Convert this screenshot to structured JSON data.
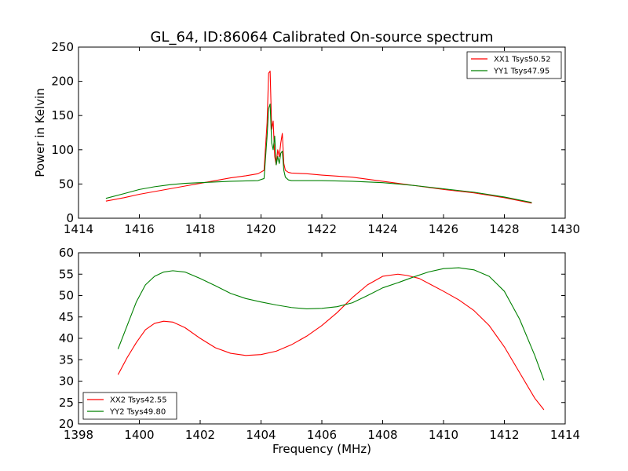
{
  "chart_data": [
    {
      "type": "line",
      "title": "GL_64, ID:86064 Calibrated On-source spectrum",
      "xlabel": "",
      "ylabel": "Power in Kelvin",
      "xlim": [
        1414,
        1430
      ],
      "ylim": [
        0,
        250
      ],
      "xticks": [
        1414,
        1416,
        1418,
        1420,
        1422,
        1424,
        1426,
        1428,
        1430
      ],
      "yticks": [
        0,
        50,
        100,
        150,
        200,
        250
      ],
      "grid": false,
      "legend_position": "top-right",
      "series": [
        {
          "name": "XX1 Tsys50.52",
          "color": "#ff0000",
          "x": [
            1414.9,
            1415.5,
            1416.0,
            1416.5,
            1417.0,
            1417.5,
            1418.0,
            1418.5,
            1419.0,
            1419.5,
            1419.9,
            1420.1,
            1420.2,
            1420.25,
            1420.3,
            1420.35,
            1420.4,
            1420.45,
            1420.5,
            1420.55,
            1420.6,
            1420.65,
            1420.7,
            1420.75,
            1420.8,
            1420.9,
            1421.0,
            1421.5,
            1422.0,
            1423.0,
            1424.0,
            1425.0,
            1426.0,
            1427.0,
            1428.0,
            1428.9
          ],
          "y": [
            25,
            30,
            35,
            39,
            43,
            47,
            51,
            55,
            59,
            62,
            65,
            70,
            140,
            212,
            215,
            130,
            142,
            90,
            78,
            100,
            90,
            110,
            124,
            80,
            70,
            67,
            66,
            65,
            63,
            60,
            54,
            48,
            42,
            37,
            30,
            22
          ]
        },
        {
          "name": "YY1 Tsys47.95",
          "color": "#008000",
          "x": [
            1414.9,
            1415.5,
            1416.0,
            1416.5,
            1417.0,
            1417.5,
            1418.0,
            1418.5,
            1419.0,
            1419.5,
            1419.9,
            1420.1,
            1420.2,
            1420.25,
            1420.3,
            1420.35,
            1420.4,
            1420.45,
            1420.5,
            1420.55,
            1420.6,
            1420.65,
            1420.7,
            1420.75,
            1420.8,
            1420.9,
            1421.0,
            1421.5,
            1422.0,
            1423.0,
            1424.0,
            1425.0,
            1426.0,
            1427.0,
            1428.0,
            1428.9
          ],
          "y": [
            29,
            36,
            42,
            46,
            49,
            51,
            52,
            53,
            54,
            54.5,
            55,
            58,
            120,
            160,
            167,
            110,
            100,
            120,
            78,
            90,
            80,
            95,
            98,
            70,
            60,
            56,
            55,
            55,
            55,
            54,
            52,
            48,
            43,
            38,
            31,
            23
          ]
        }
      ]
    },
    {
      "type": "line",
      "title": "",
      "xlabel": "Frequency (MHz)",
      "ylabel": "",
      "xlim": [
        1398,
        1414
      ],
      "ylim": [
        20,
        60
      ],
      "xticks": [
        1398,
        1400,
        1402,
        1404,
        1406,
        1408,
        1410,
        1412,
        1414
      ],
      "yticks": [
        20,
        25,
        30,
        35,
        40,
        45,
        50,
        55,
        60
      ],
      "grid": false,
      "legend_position": "bottom-left",
      "series": [
        {
          "name": "XX2 Tsys42.55",
          "color": "#ff0000",
          "x": [
            1399.3,
            1399.6,
            1399.9,
            1400.2,
            1400.5,
            1400.8,
            1401.1,
            1401.5,
            1402.0,
            1402.5,
            1403.0,
            1403.5,
            1404.0,
            1404.5,
            1405.0,
            1405.5,
            1406.0,
            1406.5,
            1407.0,
            1407.5,
            1408.0,
            1408.5,
            1408.8,
            1409.2,
            1409.6,
            1410.0,
            1410.5,
            1411.0,
            1411.5,
            1412.0,
            1412.5,
            1413.0,
            1413.3
          ],
          "y": [
            31.5,
            35.5,
            39,
            42,
            43.5,
            44,
            43.8,
            42.5,
            40,
            37.8,
            36.5,
            36,
            36.2,
            37,
            38.5,
            40.5,
            43,
            46,
            49.5,
            52.5,
            54.5,
            55,
            54.7,
            54,
            52.5,
            51,
            49,
            46.5,
            43,
            38,
            32,
            26,
            23.3
          ]
        },
        {
          "name": "YY2 Tsys49.80",
          "color": "#008000",
          "x": [
            1399.3,
            1399.6,
            1399.9,
            1400.2,
            1400.5,
            1400.8,
            1401.1,
            1401.5,
            1402.0,
            1402.5,
            1403.0,
            1403.5,
            1404.0,
            1404.5,
            1405.0,
            1405.5,
            1406.0,
            1406.5,
            1407.0,
            1407.5,
            1408.0,
            1408.5,
            1409.0,
            1409.5,
            1410.0,
            1410.5,
            1411.0,
            1411.5,
            1412.0,
            1412.5,
            1413.0,
            1413.3
          ],
          "y": [
            37.5,
            43,
            48.5,
            52.5,
            54.5,
            55.5,
            55.8,
            55.5,
            54,
            52.3,
            50.5,
            49.3,
            48.5,
            47.8,
            47.2,
            46.9,
            47,
            47.4,
            48.3,
            50,
            51.8,
            53,
            54.3,
            55.5,
            56.3,
            56.5,
            56,
            54.5,
            51,
            44.5,
            36,
            30.2
          ]
        }
      ]
    }
  ]
}
